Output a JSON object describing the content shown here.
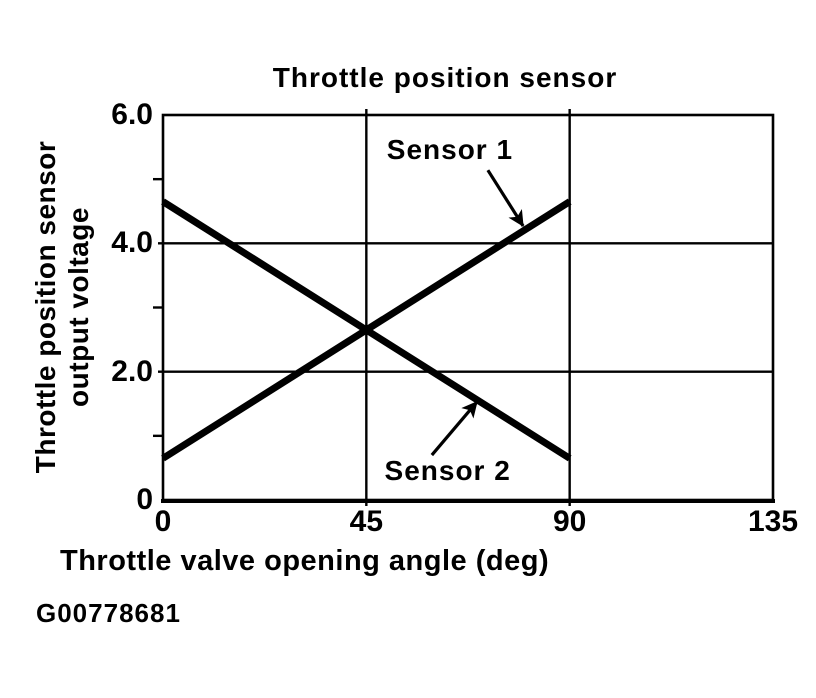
{
  "figure": {
    "footer_code": "G00778681"
  },
  "chart_data": {
    "type": "line",
    "title": "Throttle position sensor",
    "xlabel": "Throttle valve opening angle (deg)",
    "ylabel": "Throttle position sensor output voltage",
    "ylabel_lines": [
      "Throttle position sensor",
      "output voltage"
    ],
    "xlim": [
      0,
      135
    ],
    "ylim": [
      0,
      6
    ],
    "xticks": [
      {
        "value": 0,
        "label": "0"
      },
      {
        "value": 45,
        "label": "45"
      },
      {
        "value": 90,
        "label": "90"
      },
      {
        "value": 135,
        "label": "135"
      }
    ],
    "yticks": [
      {
        "value": 0,
        "label": "0"
      },
      {
        "value": 2,
        "label": "2.0"
      },
      {
        "value": 4,
        "label": "4.0"
      },
      {
        "value": 6,
        "label": "6.0"
      }
    ],
    "y_minor_ticks": [
      1,
      3,
      5
    ],
    "grid": {
      "x_values": [
        45,
        90
      ],
      "y_values": [
        2,
        4
      ]
    },
    "legend_position": "inline-annotations",
    "line_color": "#000000",
    "series": [
      {
        "name": "Sensor 1",
        "x": [
          0,
          90
        ],
        "y": [
          0.65,
          4.65
        ]
      },
      {
        "name": "Sensor 2",
        "x": [
          0,
          90
        ],
        "y": [
          4.65,
          0.65
        ]
      }
    ],
    "annotations": [
      {
        "text": "Sensor 1",
        "label_x": 63.5,
        "label_y": 5.45,
        "arrow": {
          "x1": 71.9,
          "y1": 5.14,
          "x2": 79.7,
          "y2": 4.27
        }
      },
      {
        "text": "Sensor 2",
        "label_x": 63.0,
        "label_y": 0.45,
        "arrow": {
          "x1": 59.5,
          "y1": 0.7,
          "x2": 69.5,
          "y2": 1.53
        }
      }
    ]
  }
}
